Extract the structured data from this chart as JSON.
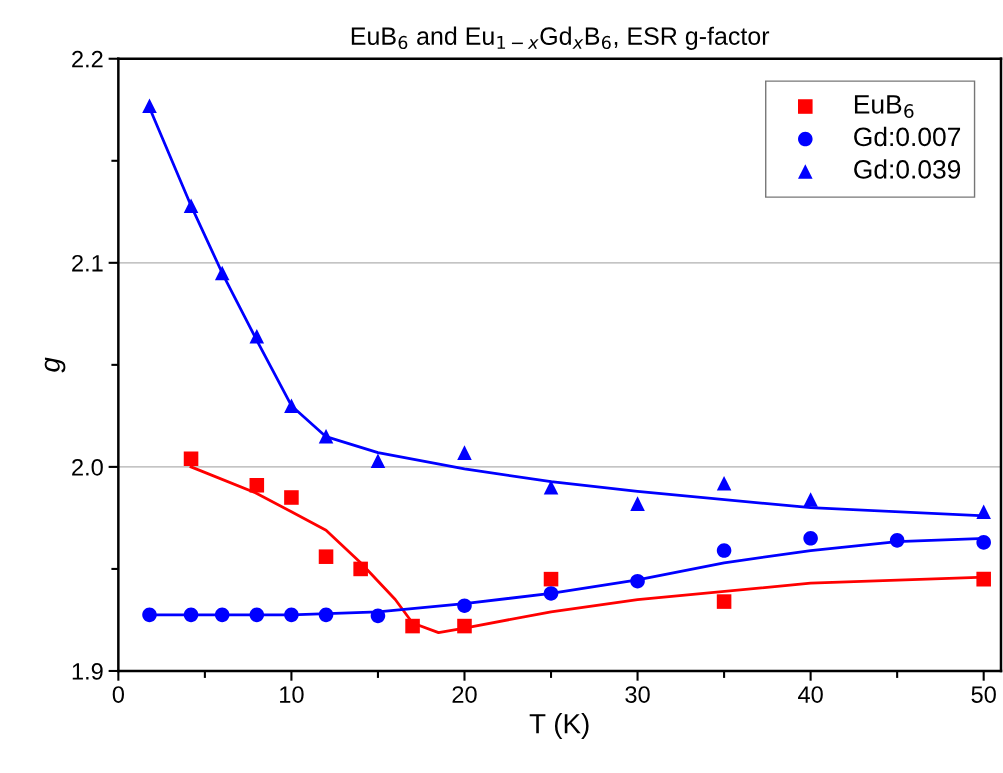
{
  "chart_data": {
    "type": "scatter",
    "title": "EuB$_{6}$ and Eu$_{1−x}$Gd$_{x}$B$_{6}$, ESR g-factor",
    "xlabel": "T (K)",
    "ylabel": "g",
    "xlim": [
      0,
      51
    ],
    "ylim": [
      1.9,
      2.2
    ],
    "xticks": [
      0,
      {
        "value": 5,
        "label": null
      },
      10,
      {
        "value": 15,
        "label": null
      },
      20,
      {
        "value": 25,
        "label": null
      },
      30,
      {
        "value": 35,
        "label": null
      },
      40,
      {
        "value": 45,
        "label": null
      },
      50
    ],
    "yticks": [
      1.9,
      {
        "value": 1.95,
        "label": null
      },
      {
        "value": 2.0,
        "label": "2.0"
      },
      {
        "value": 2.05,
        "label": null
      },
      2.1,
      {
        "value": 2.15,
        "label": null
      },
      2.2
    ],
    "grid": "y",
    "legend": "top right",
    "series": [
      {
        "name": "EuB$_{6}$",
        "marker": "square",
        "color": "#ff0000",
        "x": [
          4.2,
          8,
          10,
          12,
          14,
          17,
          20,
          25,
          35,
          50
        ],
        "values": [
          2.004,
          1.991,
          1.985,
          1.956,
          1.95,
          1.922,
          1.922,
          1.945,
          1.934,
          1.945
        ]
      },
      {
        "name": "Gd:0.007",
        "marker": "circle",
        "color": "#0000ff",
        "x": [
          1.8,
          4.2,
          6,
          8,
          10,
          12,
          15,
          20,
          25,
          30,
          35,
          40,
          45,
          50
        ],
        "values": [
          1.9275,
          1.9275,
          1.9275,
          1.9275,
          1.9275,
          1.9275,
          1.927,
          1.932,
          1.938,
          1.944,
          1.959,
          1.965,
          1.964,
          1.963
        ]
      },
      {
        "name": "Gd:0.039",
        "marker": "triangle",
        "color": "#0000ff",
        "x": [
          1.8,
          4.2,
          6,
          8,
          10,
          12,
          15,
          20,
          25,
          30,
          35,
          40,
          50
        ],
        "values": [
          2.177,
          2.128,
          2.095,
          2.064,
          2.03,
          2.015,
          2.003,
          2.007,
          1.99,
          1.982,
          1.992,
          1.984,
          1.978
        ]
      },
      {
        "type": "line",
        "color": "#ff0000",
        "x": [
          4.2,
          8,
          10,
          12,
          14,
          16,
          17,
          18.5,
          20,
          25,
          30,
          40,
          50
        ],
        "values": [
          2.0,
          1.987,
          1.978,
          1.969,
          1.953,
          1.935,
          1.9235,
          1.9188,
          1.921,
          1.929,
          1.935,
          1.943,
          1.946
        ]
      },
      {
        "type": "line",
        "color": "#0000ff",
        "x": [
          1.8,
          10,
          15,
          20,
          25,
          30,
          35,
          40,
          45,
          50
        ],
        "values": [
          1.9275,
          1.9275,
          1.929,
          1.933,
          1.938,
          1.9446,
          1.953,
          1.959,
          1.9634,
          1.965
        ]
      },
      {
        "type": "line",
        "color": "#0000ff",
        "x": [
          1.8,
          4.2,
          6,
          8,
          10,
          12,
          15,
          20,
          25,
          30,
          40,
          50
        ],
        "values": [
          2.176,
          2.128,
          2.095,
          2.062,
          2.03,
          2.0148,
          2.007,
          1.999,
          1.9928,
          1.988,
          1.98,
          1.976
        ]
      }
    ]
  }
}
